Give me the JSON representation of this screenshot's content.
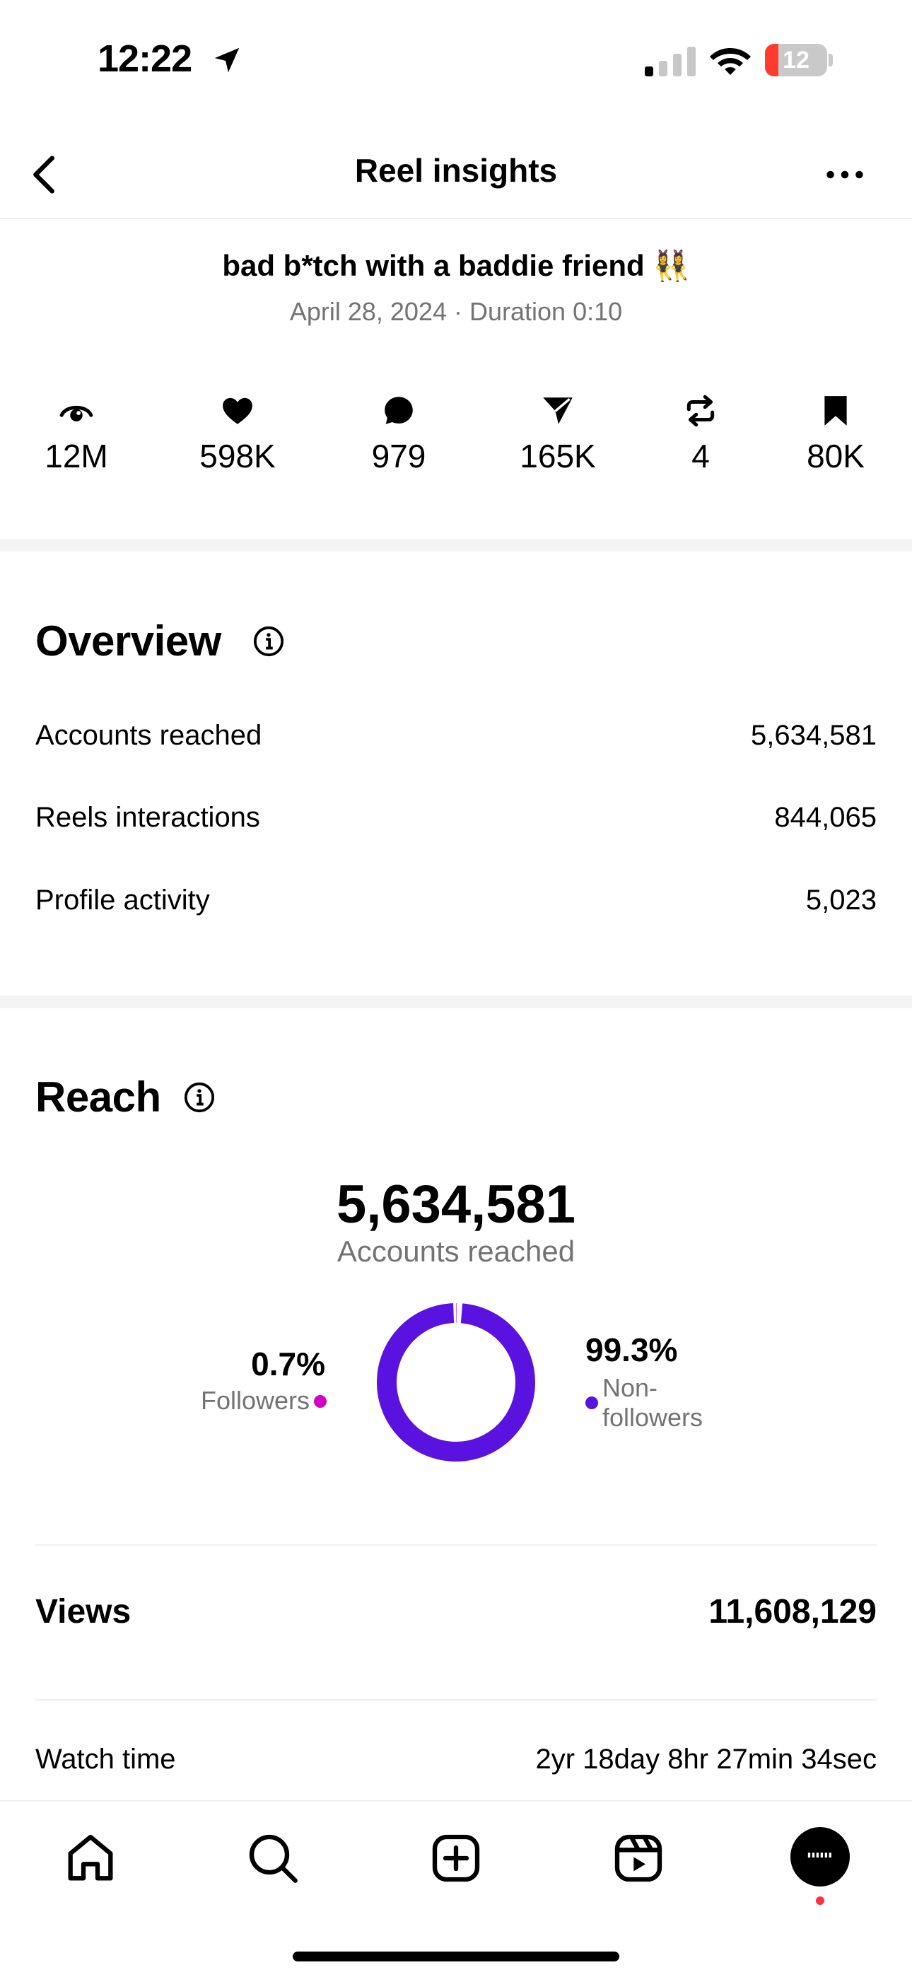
{
  "status_bar": {
    "time": "12:22",
    "battery_level": "12",
    "battery_fraction": 0.12,
    "signal_bars_active": 1,
    "icons": [
      "location-arrow-icon",
      "cellular-signal-icon",
      "wifi-icon",
      "battery-icon"
    ]
  },
  "nav": {
    "title": "Reel insights",
    "back_icon": "chevron-left-icon",
    "more_icon": "more-horizontal-icon"
  },
  "reel": {
    "title": "bad b*tch with a baddie friend 👯‍♀️",
    "meta": "April 28, 2024 · Duration 0:10"
  },
  "stats": [
    {
      "icon": "eye-icon",
      "value": "12M"
    },
    {
      "icon": "heart-icon",
      "value": "598K"
    },
    {
      "icon": "comment-icon",
      "value": "979"
    },
    {
      "icon": "share-icon",
      "value": "165K"
    },
    {
      "icon": "repost-icon",
      "value": "4"
    },
    {
      "icon": "bookmark-icon",
      "value": "80K"
    }
  ],
  "overview": {
    "title": "Overview",
    "rows": [
      {
        "label": "Accounts reached",
        "value": "5,634,581"
      },
      {
        "label": "Reels interactions",
        "value": "844,065"
      },
      {
        "label": "Profile activity",
        "value": "5,023"
      }
    ]
  },
  "reach": {
    "title": "Reach",
    "total": "5,634,581",
    "total_label": "Accounts reached",
    "followers_pct": "0.7%",
    "followers_label": "Followers",
    "non_followers_pct": "99.3%",
    "non_followers_label": "Non-followers",
    "followers_fraction": 0.007,
    "colors": {
      "followers": "#d300c5",
      "non_followers": "#5a12e0"
    }
  },
  "views": {
    "label": "Views",
    "value": "11,608,129"
  },
  "watch_time": {
    "label": "Watch time",
    "value": "2yr 18day 8hr 27min 34sec"
  },
  "tab_bar": {
    "tabs": [
      "home-icon",
      "search-icon",
      "create-icon",
      "reels-icon",
      "profile-avatar"
    ],
    "notification_color": "#ff3040"
  }
}
